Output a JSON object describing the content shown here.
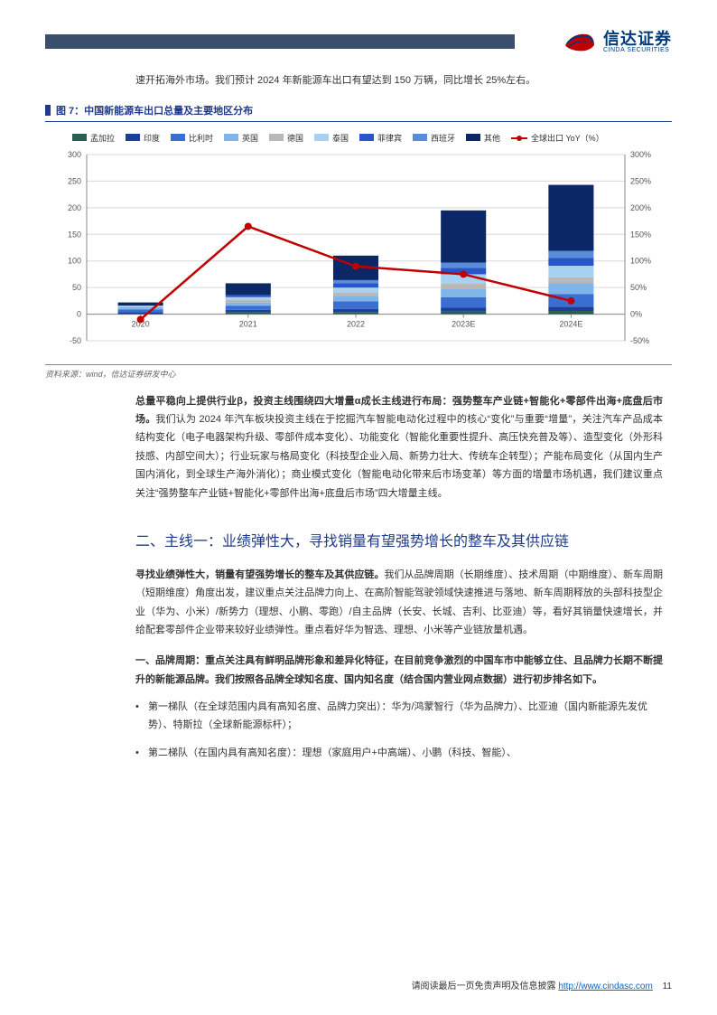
{
  "logo": {
    "cn": "信达证券",
    "en": "CINDA SECURITIES"
  },
  "intro": "速开拓海外市场。我们预计 2024 年新能源车出口有望达到 150 万辆，同比增长 25%左右。",
  "figure": {
    "label": "图 7：中国新能源车出口总量及主要地区分布",
    "source": "资料来源：wind，信达证券研发中心"
  },
  "chart": {
    "type": "bar+line",
    "categories": [
      "2020",
      "2021",
      "2022",
      "2023E",
      "2024E"
    ],
    "yleft": {
      "min": -50,
      "max": 300,
      "step": 50,
      "label": ""
    },
    "yright": {
      "min": -50,
      "max": 300,
      "step": 50,
      "suffix": "%"
    },
    "legend": [
      {
        "name": "孟加拉",
        "color": "#2a5f4f",
        "type": "bar"
      },
      {
        "name": "印度",
        "color": "#1d3f99",
        "type": "bar"
      },
      {
        "name": "比利时",
        "color": "#3a6fd1",
        "type": "bar"
      },
      {
        "name": "英国",
        "color": "#7fb5e8",
        "type": "bar"
      },
      {
        "name": "德国",
        "color": "#b8b8b8",
        "type": "bar"
      },
      {
        "name": "泰国",
        "color": "#a8d0f0",
        "type": "bar"
      },
      {
        "name": "菲律宾",
        "color": "#2855c9",
        "type": "bar"
      },
      {
        "name": "西班牙",
        "color": "#5a8dd9",
        "type": "bar"
      },
      {
        "name": "其他",
        "color": "#0b2766",
        "type": "bar"
      },
      {
        "name": "全球出口 YoY（%）",
        "color": "#c00000",
        "type": "line"
      }
    ],
    "stacks": [
      {
        "cat": "2020",
        "segments": [
          {
            "c": "#1d3f99",
            "v": 4
          },
          {
            "c": "#3a6fd1",
            "v": 5
          },
          {
            "c": "#7fb5e8",
            "v": 4
          },
          {
            "c": "#a8d0f0",
            "v": 3
          },
          {
            "c": "#0b2766",
            "v": 6
          }
        ]
      },
      {
        "cat": "2021",
        "segments": [
          {
            "c": "#2a5f4f",
            "v": 3
          },
          {
            "c": "#1d3f99",
            "v": 5
          },
          {
            "c": "#3a6fd1",
            "v": 8
          },
          {
            "c": "#7fb5e8",
            "v": 6
          },
          {
            "c": "#b8b8b8",
            "v": 5
          },
          {
            "c": "#a8d0f0",
            "v": 5
          },
          {
            "c": "#2855c9",
            "v": 4
          },
          {
            "c": "#0b2766",
            "v": 22
          }
        ]
      },
      {
        "cat": "2022",
        "segments": [
          {
            "c": "#2a5f4f",
            "v": 4
          },
          {
            "c": "#1d3f99",
            "v": 6
          },
          {
            "c": "#3a6fd1",
            "v": 14
          },
          {
            "c": "#7fb5e8",
            "v": 10
          },
          {
            "c": "#b8b8b8",
            "v": 6
          },
          {
            "c": "#a8d0f0",
            "v": 10
          },
          {
            "c": "#2855c9",
            "v": 8
          },
          {
            "c": "#5a8dd9",
            "v": 6
          },
          {
            "c": "#0b2766",
            "v": 46
          }
        ]
      },
      {
        "cat": "2023E",
        "segments": [
          {
            "c": "#2a5f4f",
            "v": 5
          },
          {
            "c": "#1d3f99",
            "v": 7
          },
          {
            "c": "#3a6fd1",
            "v": 20
          },
          {
            "c": "#7fb5e8",
            "v": 16
          },
          {
            "c": "#b8b8b8",
            "v": 9
          },
          {
            "c": "#a8d0f0",
            "v": 18
          },
          {
            "c": "#2855c9",
            "v": 12
          },
          {
            "c": "#5a8dd9",
            "v": 10
          },
          {
            "c": "#0b2766",
            "v": 98
          }
        ]
      },
      {
        "cat": "2024E",
        "segments": [
          {
            "c": "#2a5f4f",
            "v": 6
          },
          {
            "c": "#1d3f99",
            "v": 8
          },
          {
            "c": "#3a6fd1",
            "v": 24
          },
          {
            "c": "#7fb5e8",
            "v": 20
          },
          {
            "c": "#b8b8b8",
            "v": 11
          },
          {
            "c": "#a8d0f0",
            "v": 22
          },
          {
            "c": "#2855c9",
            "v": 15
          },
          {
            "c": "#5a8dd9",
            "v": 13
          },
          {
            "c": "#0b2766",
            "v": 124
          }
        ]
      }
    ],
    "line": [
      -10,
      165,
      90,
      75,
      25
    ],
    "line_color": "#c00000",
    "grid_color": "#d9d9d9",
    "axis_color": "#888888",
    "bar_width": 0.42,
    "label_fontsize": 9,
    "background_color": "#ffffff"
  },
  "para1_bold": "总量平稳向上提供行业β，投资主线围绕四大增量α成长主线进行布局：强势整车产业链+智能化+零部件出海+底盘后市场。",
  "para1_rest": "我们认为 2024 年汽车板块投资主线在于挖掘汽车智能电动化过程中的核心“变化”与重要“增量”，关注汽车产品成本结构变化（电子电器架构升级、零部件成本变化）、功能变化（智能化重要性提升、高压快充普及等）、造型变化（外形科技感、内部空间大）；行业玩家与格局变化（科技型企业入局、新势力壮大、传统车企转型）；产能布局变化（从国内生产国内消化，到全球生产海外消化）；商业模式变化（智能电动化带来后市场变革）等方面的增量市场机遇，我们建议重点关注“强势整车产业链+智能化+零部件出海+底盘后市场”四大增量主线。",
  "section_heading": "二、主线一：业绩弹性大，寻找销量有望强势增长的整车及其供应链",
  "para2_bold": "寻找业绩弹性大，销量有望强势增长的整车及其供应链。",
  "para2_rest": "我们从品牌周期（长期维度）、技术周期（中期维度）、新车周期（短期维度）角度出发，建议重点关注品牌力向上、在高阶智能驾驶领域快速推进与落地、新车周期释放的头部科技型企业（华为、小米）/新势力（理想、小鹏、零跑）/自主品牌（长安、长城、吉利、比亚迪）等，看好其销量快速增长，并给配套零部件企业带来较好业绩弹性。重点看好华为智选、理想、小米等产业链放量机遇。",
  "para3_bold": "一、品牌周期：重点关注具有鲜明品牌形象和差异化特征，在目前竞争激烈的中国车市中能够立住、且品牌力长期不断提升的新能源品牌。我们按照各品牌全球知名度、国内知名度（结合国内营业网点数据）进行初步排名如下。",
  "bullets": [
    {
      "bold": "第一梯队（在全球范围内具有高知名度、品牌力突出）：",
      "rest": "华为/鸿蒙智行（华为品牌力）、比亚迪（国内新能源先发优势）、特斯拉（全球新能源标杆）；"
    },
    {
      "bold": "第二梯队（在国内具有高知名度）：",
      "rest": "理想（家庭用户+中高端）、小鹏（科技、智能）、"
    }
  ],
  "footer": {
    "text": "请阅读最后一页免责声明及信息披露",
    "link": "http://www.cindasc.com",
    "page": "11"
  }
}
